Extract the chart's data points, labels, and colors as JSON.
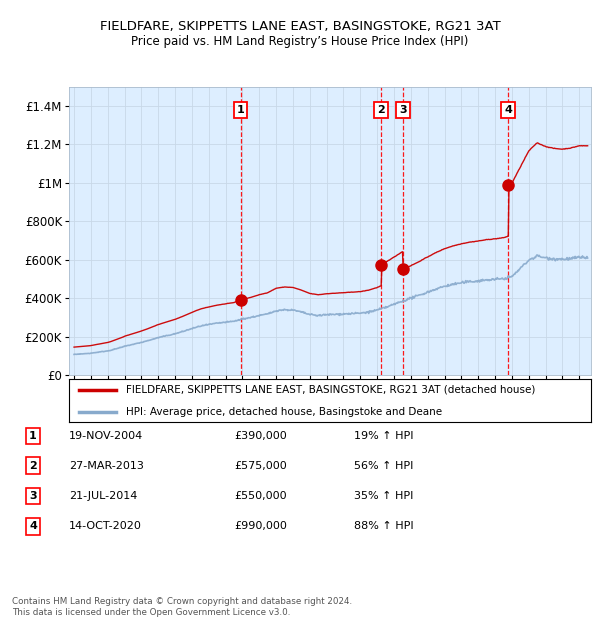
{
  "title": "FIELDFARE, SKIPPETTS LANE EAST, BASINGSTOKE, RG21 3AT",
  "subtitle": "Price paid vs. HM Land Registry’s House Price Index (HPI)",
  "plot_bg_color": "#ddeeff",
  "grid_color": "#c8d8e8",
  "line1_color": "#cc0000",
  "line2_color": "#88aacc",
  "sale_years_decimal": [
    2004.885,
    2013.24,
    2014.545,
    2020.79
  ],
  "sale_prices": [
    390000,
    575000,
    550000,
    990000
  ],
  "sale_labels": [
    "1",
    "2",
    "3",
    "4"
  ],
  "transactions": [
    {
      "label": "1",
      "date": "19-NOV-2004",
      "price": "£390,000",
      "pct": "19% ↑ HPI"
    },
    {
      "label": "2",
      "date": "27-MAR-2013",
      "price": "£575,000",
      "pct": "56% ↑ HPI"
    },
    {
      "label": "3",
      "date": "21-JUL-2014",
      "price": "£550,000",
      "pct": "35% ↑ HPI"
    },
    {
      "label": "4",
      "date": "14-OCT-2020",
      "price": "£990,000",
      "pct": "88% ↑ HPI"
    }
  ],
  "legend_line1": "FIELDFARE, SKIPPETTS LANE EAST, BASINGSTOKE, RG21 3AT (detached house)",
  "legend_line2": "HPI: Average price, detached house, Basingstoke and Deane",
  "footer": "Contains HM Land Registry data © Crown copyright and database right 2024.\nThis data is licensed under the Open Government Licence v3.0.",
  "yticks": [
    0,
    200000,
    400000,
    600000,
    800000,
    1000000,
    1200000,
    1400000
  ],
  "ytick_labels": [
    "£0",
    "£200K",
    "£400K",
    "£600K",
    "£800K",
    "£1M",
    "£1.2M",
    "£1.4M"
  ],
  "hpi_years": [
    1995.0,
    1995.083,
    1995.167,
    1995.25,
    1995.333,
    1995.417,
    1995.5,
    1995.583,
    1995.667,
    1995.75,
    1995.833,
    1995.917,
    1996.0,
    1996.083,
    1996.167,
    1996.25,
    1996.333,
    1996.417,
    1996.5,
    1996.583,
    1996.667,
    1996.75,
    1996.833,
    1996.917,
    1997.0,
    1997.083,
    1997.167,
    1997.25,
    1997.333,
    1997.417,
    1997.5,
    1997.583,
    1997.667,
    1997.75,
    1997.833,
    1997.917,
    1998.0,
    1998.5,
    1999.0,
    1999.5,
    2000.0,
    2000.5,
    2001.0,
    2001.5,
    2002.0,
    2002.5,
    2003.0,
    2003.5,
    2004.0,
    2004.5,
    2005.0,
    2005.5,
    2006.0,
    2006.5,
    2007.0,
    2007.5,
    2008.0,
    2008.5,
    2009.0,
    2009.5,
    2010.0,
    2010.5,
    2011.0,
    2011.5,
    2012.0,
    2012.5,
    2013.0,
    2013.5,
    2014.0,
    2014.5,
    2015.0,
    2015.5,
    2016.0,
    2016.5,
    2017.0,
    2017.5,
    2018.0,
    2018.5,
    2019.0,
    2019.5,
    2020.0,
    2020.5,
    2021.0,
    2021.5,
    2022.0,
    2022.5,
    2023.0,
    2023.5,
    2024.0,
    2024.5,
    2025.0
  ],
  "hpi_vals": [
    108000,
    108500,
    109000,
    109200,
    109500,
    110000,
    110500,
    111000,
    111500,
    112000,
    112500,
    113000,
    114000,
    115000,
    116000,
    117000,
    118000,
    119000,
    120000,
    121000,
    122000,
    123000,
    124000,
    125000,
    126000,
    127500,
    129000,
    131000,
    133000,
    135000,
    137000,
    139000,
    141000,
    143000,
    145000,
    147000,
    150000,
    160000,
    170000,
    182000,
    195000,
    205000,
    215000,
    228000,
    242000,
    255000,
    263000,
    270000,
    275000,
    280000,
    292000,
    300000,
    310000,
    318000,
    335000,
    340000,
    338000,
    328000,
    315000,
    310000,
    314000,
    316000,
    318000,
    320000,
    322000,
    328000,
    338000,
    352000,
    368000,
    385000,
    400000,
    415000,
    432000,
    448000,
    462000,
    472000,
    480000,
    486000,
    490000,
    495000,
    498000,
    502000,
    512000,
    555000,
    598000,
    620000,
    610000,
    605000,
    603000,
    606000,
    612000
  ],
  "xlim_start": 1994.7,
  "xlim_end": 2025.7
}
